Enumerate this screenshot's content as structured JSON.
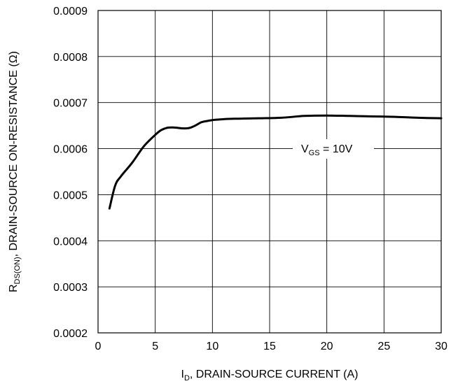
{
  "chart_data": {
    "type": "line",
    "xlabel": {
      "main": "I",
      "sub": "D",
      "rest": ", DRAIN-SOURCE CURRENT (A)"
    },
    "ylabel": {
      "main": "R",
      "sub": "DS(ON)",
      "rest": ", DRAIN-SOURCE ON-RESISTANCE (Ω)"
    },
    "xlim": [
      0,
      30
    ],
    "ylim": [
      0.0002,
      0.0009
    ],
    "x_ticks": [
      "0",
      "5",
      "10",
      "15",
      "20",
      "25",
      "30"
    ],
    "y_ticks": [
      "0.0002",
      "0.0003",
      "0.0004",
      "0.0005",
      "0.0006",
      "0.0007",
      "0.0008",
      "0.0009"
    ],
    "grid": true,
    "annotation": {
      "main": "V",
      "sub": "GS",
      "rest": " = 10V"
    },
    "series": [
      {
        "x": [
          1.0,
          1.5,
          2.0,
          3.0,
          4.0,
          5.0,
          5.5,
          6.0,
          6.5,
          7.0,
          7.5,
          8.0,
          8.5,
          9.0,
          9.5,
          10.0,
          11.0,
          12.0,
          14.0,
          16.0,
          18.0,
          20.0,
          22.0,
          24.0,
          26.0,
          28.0,
          30.0
        ],
        "y": [
          0.00047,
          0.00052,
          0.00054,
          0.00057,
          0.000605,
          0.00063,
          0.00064,
          0.000645,
          0.000646,
          0.000645,
          0.000644,
          0.000645,
          0.00065,
          0.000657,
          0.00066,
          0.000662,
          0.000664,
          0.000665,
          0.000666,
          0.000667,
          0.000671,
          0.000672,
          0.000671,
          0.00067,
          0.000669,
          0.000667,
          0.000666
        ]
      }
    ]
  }
}
